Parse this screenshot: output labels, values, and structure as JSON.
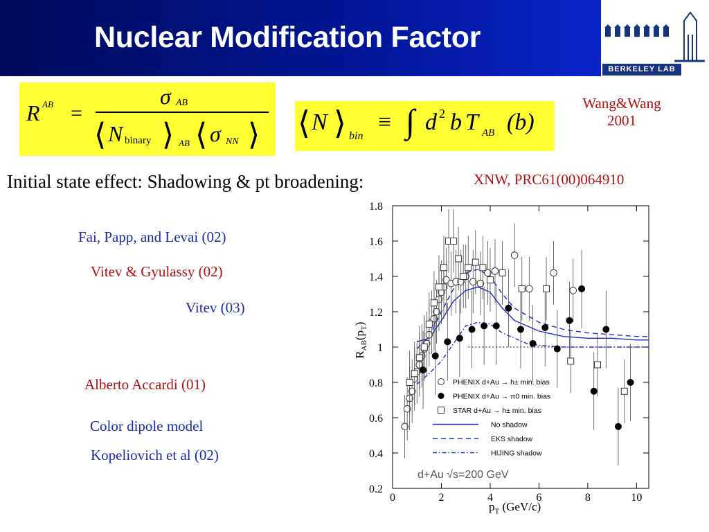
{
  "slide": {
    "title": "Nuclear Modification Factor",
    "logo_text": "BERKELEY LAB",
    "subtitle": "Initial state effect: Shadowing & pt broadening:",
    "ref_wang_line1": "Wang&Wang",
    "ref_wang_line2": "2001",
    "ref_xnw": "XNW, PRC61(00)064910",
    "models": {
      "fai": "Fai, Papp, and Levai (02)",
      "vitev_gyulassy": "Vitev & Gyulassy (02)",
      "vitev": "Vitev (03)",
      "accardi": "Alberto Accardi (01)",
      "color_dipole": "Color dipole model",
      "kopeliovich": "Kopeliovich et al (02)"
    },
    "colors": {
      "title_bg": "#001696",
      "formula_bg": "#ffff33",
      "ref_red": "#b01010",
      "model_blue": "#1a2aa8"
    }
  },
  "formulas": {
    "raa": {
      "lhs": "R",
      "lhs_sup": "AB",
      "eq": "=",
      "num_sigma": "σ",
      "num_sub": "AB",
      "den_n": "N",
      "den_n_sub": "binary",
      "den_sub": "AB",
      "den_sigma": "σ",
      "den_sigma_sub": "NN"
    },
    "nbin": {
      "n": "N",
      "sub": "bin",
      "equiv": "≡",
      "integral": "∫",
      "d": "d",
      "sq": "2",
      "b": "b",
      "t": "T",
      "t_sub": "AB",
      "arg": "(b)"
    }
  },
  "chart_data": {
    "type": "scatter",
    "xlabel": "pT (GeV/c)",
    "ylabel": "RAB(pT)",
    "xlim": [
      0,
      10.5
    ],
    "ylim": [
      0.2,
      1.8
    ],
    "xticks": [
      0,
      2,
      4,
      6,
      8,
      10
    ],
    "yticks": [
      0.2,
      0.4,
      0.6,
      0.8,
      1,
      1.2,
      1.4,
      1.6,
      1.8
    ],
    "annotation": "d+Au √s=200 GeV",
    "legend_position": "lower-right",
    "series": [
      {
        "name": "PHENIX d+Au → h± min. bias",
        "marker": "open-circle",
        "x": [
          0.5,
          0.6,
          0.7,
          0.8,
          0.9,
          1.0,
          1.1,
          1.2,
          1.3,
          1.4,
          1.5,
          1.6,
          1.7,
          1.8,
          1.9,
          2.0,
          2.1,
          2.2,
          2.4,
          2.6,
          2.8,
          3.0,
          3.3,
          3.6,
          3.9,
          4.2,
          5.0,
          5.6,
          6.6,
          7.4
        ],
        "y": [
          0.55,
          0.65,
          0.71,
          0.75,
          0.82,
          0.86,
          0.9,
          0.95,
          0.99,
          1.02,
          1.07,
          1.14,
          1.16,
          1.2,
          1.27,
          1.31,
          1.34,
          1.38,
          1.36,
          1.37,
          1.37,
          1.4,
          1.37,
          1.36,
          1.42,
          1.43,
          1.52,
          1.33,
          1.42,
          1.32
        ]
      },
      {
        "name": "PHENIX d+Au → π0 min. bias",
        "marker": "filled-circle",
        "x": [
          1.25,
          1.75,
          2.25,
          2.75,
          3.25,
          3.75,
          4.25,
          4.75,
          5.25,
          5.75,
          6.25,
          6.75,
          7.25,
          7.75,
          8.25,
          8.75,
          9.25,
          9.75
        ],
        "y": [
          0.87,
          0.95,
          1.03,
          1.05,
          1.1,
          1.12,
          1.12,
          1.22,
          1.1,
          1.02,
          1.11,
          0.99,
          1.15,
          1.33,
          0.75,
          1.1,
          0.55,
          0.8
        ]
      },
      {
        "name": "STAR d+Au → h± min. bias",
        "marker": "open-square",
        "x": [
          0.7,
          0.9,
          1.1,
          1.3,
          1.5,
          1.7,
          1.9,
          2.1,
          2.3,
          2.5,
          2.7,
          2.9,
          3.1,
          3.4,
          3.7,
          4.0,
          4.5,
          5.3,
          6.3,
          7.3,
          8.4,
          9.5
        ],
        "y": [
          0.8,
          0.85,
          0.94,
          1.0,
          1.13,
          1.25,
          1.34,
          1.45,
          1.6,
          1.6,
          1.5,
          1.4,
          1.45,
          1.48,
          1.45,
          1.38,
          1.42,
          1.33,
          1.33,
          0.92,
          0.9,
          0.75
        ]
      },
      {
        "name": "No shadow",
        "line": "solid",
        "x": [
          1.0,
          1.5,
          2.0,
          2.5,
          3.0,
          3.5,
          4.0,
          4.5,
          5.0,
          5.5,
          6.0,
          7.0,
          8.0,
          9.0,
          10.0,
          10.5
        ],
        "y": [
          1.03,
          1.05,
          1.15,
          1.26,
          1.32,
          1.34,
          1.31,
          1.22,
          1.15,
          1.12,
          1.09,
          1.06,
          1.05,
          1.05,
          1.04,
          1.04
        ]
      },
      {
        "name": "EKS shadow",
        "line": "dashed",
        "x": [
          1.0,
          1.5,
          2.0,
          2.5,
          3.0,
          3.5,
          4.0,
          4.5,
          5.0,
          5.5,
          6.0,
          7.0,
          8.0,
          9.0,
          10.0,
          10.5
        ],
        "y": [
          0.99,
          1.06,
          1.2,
          1.33,
          1.42,
          1.44,
          1.4,
          1.3,
          1.22,
          1.18,
          1.14,
          1.1,
          1.08,
          1.07,
          1.06,
          1.06
        ]
      },
      {
        "name": "HIJING shadow",
        "line": "dash-dot",
        "x": [
          1.0,
          1.5,
          2.0,
          2.5,
          3.0,
          3.5,
          4.0,
          4.5,
          5.0,
          5.5,
          6.0,
          7.0,
          8.0,
          9.0,
          10.0,
          10.5
        ],
        "y": [
          0.79,
          0.85,
          0.92,
          1.02,
          1.12,
          1.14,
          1.13,
          1.08,
          1.05,
          1.02,
          1.01,
          1.0,
          1.0,
          1.0,
          1.0,
          1.0
        ]
      }
    ]
  }
}
